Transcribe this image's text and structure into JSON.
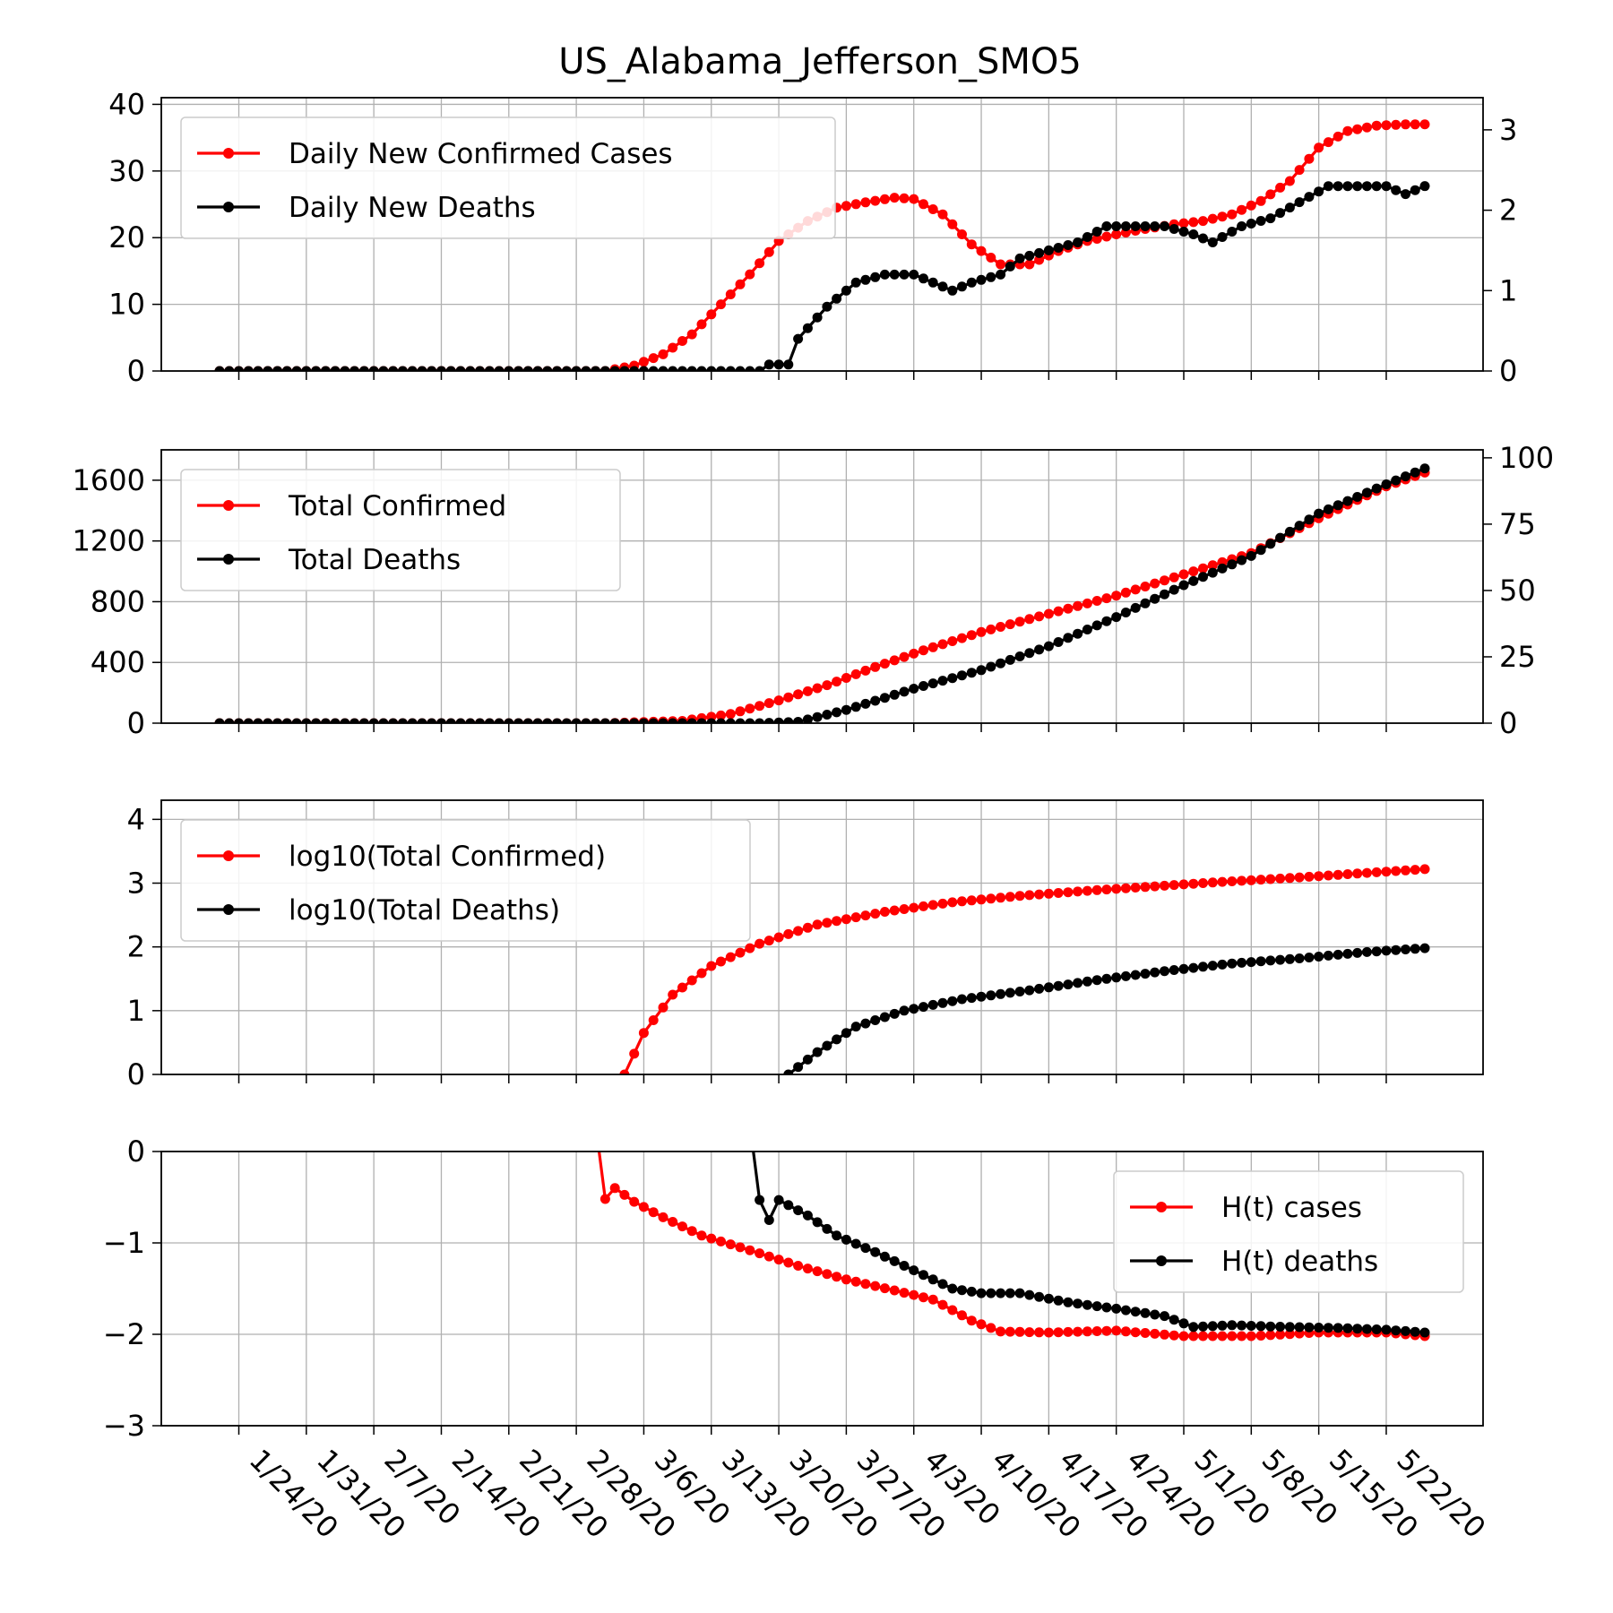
{
  "title": "US_Alabama_Jefferson_SMO5",
  "colors": {
    "cases": "#ff0000",
    "deaths": "#000000",
    "grid": "#b0b0b0"
  },
  "x_tick_labels": [
    "1/24/20",
    "1/31/20",
    "2/7/20",
    "2/14/20",
    "2/21/20",
    "2/28/20",
    "3/6/20",
    "3/13/20",
    "3/20/20",
    "3/27/20",
    "4/3/20",
    "4/10/20",
    "4/17/20",
    "4/24/20",
    "5/1/20",
    "5/8/20",
    "5/15/20",
    "5/22/20"
  ],
  "chart_data": [
    {
      "type": "line",
      "panel": "daily",
      "x_start": "1/22/20",
      "x_end": "5/26/20",
      "ylim": [
        0,
        41
      ],
      "y2lim": [
        0,
        3.4
      ],
      "yticks": [
        0,
        10,
        20,
        30,
        40
      ],
      "y2ticks": [
        0,
        1,
        2,
        3
      ],
      "grid": true,
      "legend": "top-left",
      "series": [
        {
          "name": "Daily New Confirmed Cases",
          "axis": "left",
          "color": "#ff0000",
          "points": [
            [
              "1/22/20",
              0
            ],
            [
              "3/2/20",
              0
            ],
            [
              "3/5/20",
              0.8
            ],
            [
              "3/8/20",
              2.5
            ],
            [
              "3/11/20",
              5.5
            ],
            [
              "3/14/20",
              10
            ],
            [
              "3/17/20",
              14.5
            ],
            [
              "3/20/20",
              19.5
            ],
            [
              "3/23/20",
              22.5
            ],
            [
              "3/26/20",
              24.5
            ],
            [
              "3/29/20",
              25.3
            ],
            [
              "4/1/20",
              26
            ],
            [
              "4/3/20",
              25.8
            ],
            [
              "4/6/20",
              23.5
            ],
            [
              "4/9/20",
              19
            ],
            [
              "4/12/20",
              16
            ],
            [
              "4/15/20",
              16
            ],
            [
              "4/18/20",
              18
            ],
            [
              "4/21/20",
              19.5
            ],
            [
              "4/24/20",
              20.5
            ],
            [
              "4/27/20",
              21.3
            ],
            [
              "4/30/20",
              22
            ],
            [
              "5/3/20",
              22.5
            ],
            [
              "5/6/20",
              23.5
            ],
            [
              "5/9/20",
              25.5
            ],
            [
              "5/12/20",
              28.5
            ],
            [
              "5/15/20",
              33.5
            ],
            [
              "5/18/20",
              36
            ],
            [
              "5/21/20",
              36.8
            ],
            [
              "5/24/20",
              37
            ],
            [
              "5/26/20",
              37
            ]
          ]
        },
        {
          "name": "Daily New Deaths",
          "axis": "right",
          "color": "#000000",
          "points": [
            [
              "1/22/20",
              0
            ],
            [
              "3/18/20",
              0
            ],
            [
              "3/19/20",
              0.08
            ],
            [
              "3/21/20",
              0.08
            ],
            [
              "3/22/20",
              0.4
            ],
            [
              "3/25/20",
              0.8
            ],
            [
              "3/28/20",
              1.1
            ],
            [
              "3/31/20",
              1.2
            ],
            [
              "4/3/20",
              1.2
            ],
            [
              "4/5/20",
              1.1
            ],
            [
              "4/7/20",
              1.0
            ],
            [
              "4/9/20",
              1.1
            ],
            [
              "4/12/20",
              1.2
            ],
            [
              "4/14/20",
              1.4
            ],
            [
              "4/17/20",
              1.5
            ],
            [
              "4/20/20",
              1.6
            ],
            [
              "4/23/20",
              1.8
            ],
            [
              "4/26/20",
              1.8
            ],
            [
              "4/29/20",
              1.8
            ],
            [
              "5/2/20",
              1.7
            ],
            [
              "5/4/20",
              1.6
            ],
            [
              "5/7/20",
              1.8
            ],
            [
              "5/10/20",
              1.9
            ],
            [
              "5/13/20",
              2.1
            ],
            [
              "5/16/20",
              2.3
            ],
            [
              "5/19/20",
              2.3
            ],
            [
              "5/22/20",
              2.3
            ],
            [
              "5/24/20",
              2.2
            ],
            [
              "5/26/20",
              2.3
            ]
          ]
        }
      ]
    },
    {
      "type": "line",
      "panel": "total",
      "x_start": "1/22/20",
      "x_end": "5/26/20",
      "ylim": [
        0,
        1800
      ],
      "y2lim": [
        0,
        103
      ],
      "yticks": [
        0,
        400,
        800,
        1200,
        1600
      ],
      "y2ticks": [
        0,
        25,
        50,
        75,
        100
      ],
      "grid": true,
      "legend": "top-left",
      "series": [
        {
          "name": "Total Confirmed",
          "axis": "left",
          "color": "#ff0000",
          "points": [
            [
              "1/22/20",
              0
            ],
            [
              "3/2/20",
              0
            ],
            [
              "3/10/20",
              15
            ],
            [
              "3/15/20",
              60
            ],
            [
              "3/20/20",
              150
            ],
            [
              "3/25/20",
              250
            ],
            [
              "3/30/20",
              370
            ],
            [
              "4/4/20",
              480
            ],
            [
              "4/10/20",
              600
            ],
            [
              "4/17/20",
              720
            ],
            [
              "4/24/20",
              840
            ],
            [
              "5/1/20",
              980
            ],
            [
              "5/8/20",
              1120
            ],
            [
              "5/15/20",
              1350
            ],
            [
              "5/22/20",
              1560
            ],
            [
              "5/26/20",
              1650
            ]
          ]
        },
        {
          "name": "Total Deaths",
          "axis": "right",
          "color": "#000000",
          "points": [
            [
              "1/22/20",
              0
            ],
            [
              "3/18/20",
              0
            ],
            [
              "3/22/20",
              0.5
            ],
            [
              "3/27/20",
              5
            ],
            [
              "4/3/20",
              13
            ],
            [
              "4/10/20",
              20
            ],
            [
              "4/17/20",
              29
            ],
            [
              "4/24/20",
              40
            ],
            [
              "5/1/20",
              52
            ],
            [
              "5/8/20",
              63
            ],
            [
              "5/15/20",
              79
            ],
            [
              "5/22/20",
              90
            ],
            [
              "5/26/20",
              96
            ]
          ]
        }
      ]
    },
    {
      "type": "line",
      "panel": "log",
      "x_start": "1/22/20",
      "x_end": "5/26/20",
      "ylim": [
        0,
        4.3
      ],
      "yticks": [
        0,
        1,
        2,
        3,
        4
      ],
      "grid": true,
      "legend": "top-left",
      "series": [
        {
          "name": "log10(Total Confirmed)",
          "color": "#ff0000",
          "points": [
            [
              "3/4/20",
              0
            ],
            [
              "3/6/20",
              0.65
            ],
            [
              "3/9/20",
              1.25
            ],
            [
              "3/13/20",
              1.7
            ],
            [
              "3/18/20",
              2.05
            ],
            [
              "3/24/20",
              2.35
            ],
            [
              "3/31/20",
              2.55
            ],
            [
              "4/7/20",
              2.7
            ],
            [
              "4/14/20",
              2.8
            ],
            [
              "4/21/20",
              2.88
            ],
            [
              "4/28/20",
              2.95
            ],
            [
              "5/5/20",
              3.02
            ],
            [
              "5/12/20",
              3.08
            ],
            [
              "5/19/20",
              3.15
            ],
            [
              "5/26/20",
              3.22
            ]
          ]
        },
        {
          "name": "log10(Total Deaths)",
          "color": "#000000",
          "points": [
            [
              "3/21/20",
              0
            ],
            [
              "3/24/20",
              0.35
            ],
            [
              "3/28/20",
              0.75
            ],
            [
              "4/2/20",
              1.0
            ],
            [
              "4/8/20",
              1.18
            ],
            [
              "4/15/20",
              1.32
            ],
            [
              "4/22/20",
              1.48
            ],
            [
              "4/29/20",
              1.62
            ],
            [
              "5/6/20",
              1.74
            ],
            [
              "5/13/20",
              1.82
            ],
            [
              "5/20/20",
              1.92
            ],
            [
              "5/26/20",
              1.98
            ]
          ]
        }
      ]
    },
    {
      "type": "line",
      "panel": "hazard",
      "x_start": "1/22/20",
      "x_end": "5/26/20",
      "ylim": [
        -3,
        0
      ],
      "yticks": [
        0,
        -1,
        -2,
        -3
      ],
      "ytick_labels": [
        "0",
        "−1",
        "−2",
        "−3"
      ],
      "grid": true,
      "legend": "top-right",
      "series": [
        {
          "name": "H(t) cases",
          "color": "#ff0000",
          "points": [
            [
              "3/1/20",
              0.3
            ],
            [
              "3/2/20",
              -0.52
            ],
            [
              "3/3/20",
              -0.4
            ],
            [
              "3/5/20",
              -0.55
            ],
            [
              "3/8/20",
              -0.72
            ],
            [
              "3/12/20",
              -0.92
            ],
            [
              "3/17/20",
              -1.08
            ],
            [
              "3/22/20",
              -1.25
            ],
            [
              "3/27/20",
              -1.4
            ],
            [
              "4/1/20",
              -1.52
            ],
            [
              "4/5/20",
              -1.62
            ],
            [
              "4/9/20",
              -1.85
            ],
            [
              "4/12/20",
              -1.97
            ],
            [
              "4/17/20",
              -1.98
            ],
            [
              "4/24/20",
              -1.96
            ],
            [
              "5/1/20",
              -2.02
            ],
            [
              "5/8/20",
              -2.02
            ],
            [
              "5/15/20",
              -1.98
            ],
            [
              "5/22/20",
              -1.98
            ],
            [
              "5/26/20",
              -2.02
            ]
          ]
        },
        {
          "name": "H(t) deaths",
          "color": "#000000",
          "points": [
            [
              "3/17/20",
              0.3
            ],
            [
              "3/18/20",
              -0.53
            ],
            [
              "3/19/20",
              -0.75
            ],
            [
              "3/20/20",
              -0.53
            ],
            [
              "3/23/20",
              -0.7
            ],
            [
              "3/26/20",
              -0.92
            ],
            [
              "3/30/20",
              -1.1
            ],
            [
              "4/3/20",
              -1.3
            ],
            [
              "4/7/20",
              -1.5
            ],
            [
              "4/10/20",
              -1.55
            ],
            [
              "4/14/20",
              -1.55
            ],
            [
              "4/19/20",
              -1.65
            ],
            [
              "4/24/20",
              -1.72
            ],
            [
              "4/29/20",
              -1.8
            ],
            [
              "5/2/20",
              -1.92
            ],
            [
              "5/6/20",
              -1.9
            ],
            [
              "5/12/20",
              -1.92
            ],
            [
              "5/17/20",
              -1.93
            ],
            [
              "5/22/20",
              -1.95
            ],
            [
              "5/26/20",
              -1.98
            ]
          ]
        }
      ]
    }
  ]
}
